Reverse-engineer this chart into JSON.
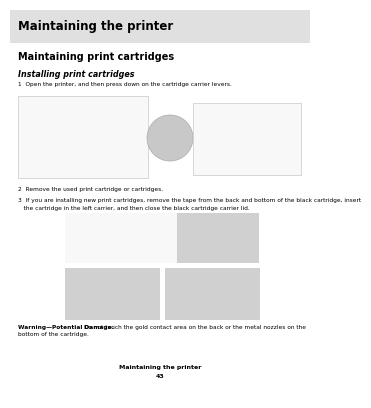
{
  "bg_color": "#ffffff",
  "header_bg": "#e0e0e0",
  "header_text": "Maintaining the printer",
  "header_fontsize": 8.5,
  "section_title": "Maintaining print cartridges",
  "section_fontsize": 7.0,
  "subsection_title": "Installing print cartridges",
  "subsection_fontsize": 5.8,
  "step1_text": "1  Open the printer, and then press down on the cartridge carrier levers.",
  "step2_text": "2  Remove the used print cartridge or cartridges.",
  "step3_line1": "3  If you are installing new print cartridges, remove the tape from the back and bottom of the black cartridge, insert",
  "step3_line2": "   the cartridge in the left carrier, and then close the black cartridge carrier lid.",
  "warning_bold": "Warning—Potential Damage:",
  "warning_rest": " Do not touch the gold contact area on the back or the metal nozzles on the",
  "warning_line2": "bottom of the cartridge.",
  "footer_text": "Maintaining the printer",
  "footer_page": "43",
  "text_color": "#000000",
  "gray_text": "#555555",
  "step_fontsize": 4.2,
  "warning_fontsize": 4.2,
  "footer_fontsize": 4.5,
  "img_placeholder_color": "#d0d0d0",
  "img_border_color": "#bbbbbb",
  "img_bg_white": "#f8f8f8"
}
